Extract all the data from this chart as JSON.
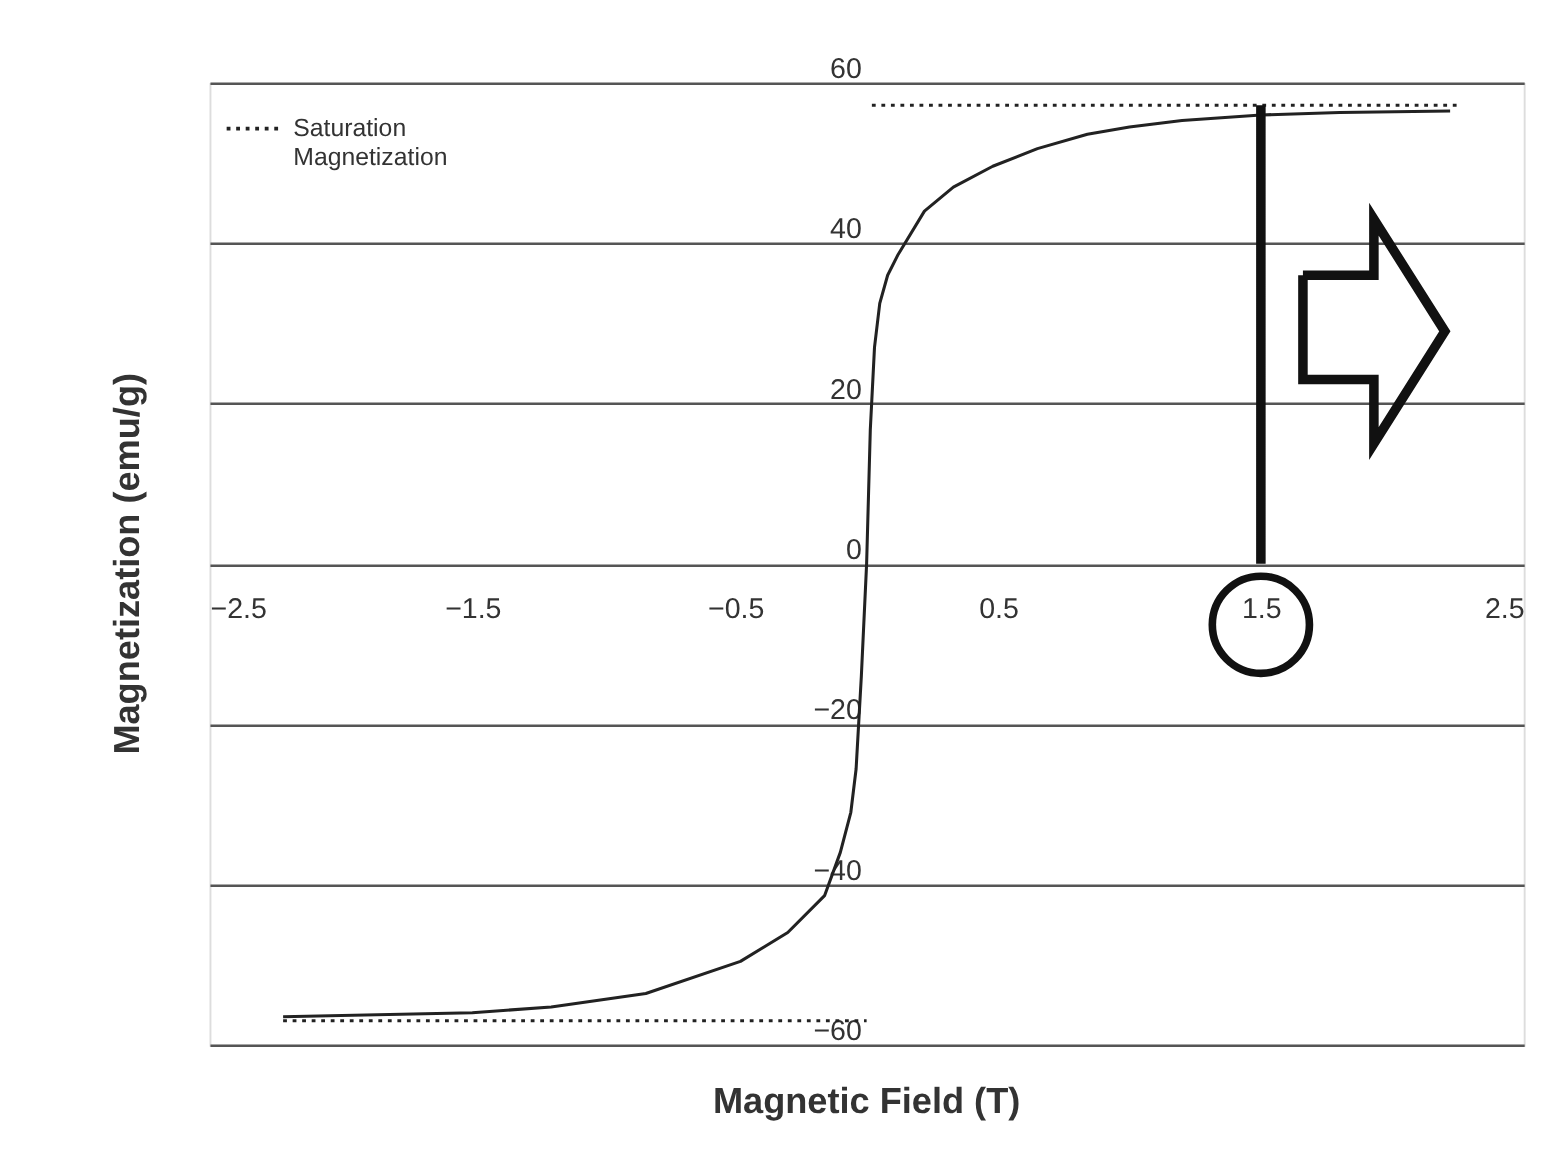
{
  "chart_data": {
    "type": "line",
    "xlabel": "Magnetic Field (T)",
    "ylabel": "Magnetization (emu/g)",
    "xlim": [
      -2.5,
      2.5
    ],
    "xticks": [
      -2.5,
      -1.5,
      -0.5,
      0.5,
      1.5,
      2.5
    ],
    "ylim": [
      -60,
      60
    ],
    "yticks": [
      -60,
      -40,
      -20,
      0,
      20,
      40,
      60
    ],
    "grid": "y",
    "legend": "top left",
    "marker": "none",
    "series": [
      {
        "color": "#222222",
        "line_style": "solid",
        "x": [
          -2.22,
          -1.5,
          -1.2,
          -0.84,
          -0.48,
          -0.3,
          -0.16,
          -0.1,
          -0.06,
          -0.04,
          -0.02,
          0,
          0.014,
          0.03,
          0.05,
          0.08,
          0.12,
          0.22,
          0.33,
          0.48,
          0.65,
          0.84,
          1.0,
          1.2,
          1.5,
          1.8,
          2.22
        ],
        "values": [
          -56.5,
          -56,
          -55.3,
          -53.6,
          -49.6,
          -46,
          -41.4,
          -36,
          -31,
          -25.6,
          -14,
          0,
          16.7,
          27,
          32.5,
          36,
          38.6,
          44,
          47,
          49.6,
          51.8,
          53.6,
          54.5,
          55.3,
          56,
          56.3,
          56.5
        ]
      },
      {
        "name": "Saturation Magnetization",
        "color": "#222222",
        "line_style": "dotted",
        "x": [
          -2.22,
          0,
          null,
          0.02,
          2.26
        ],
        "values": [
          -57,
          -57,
          null,
          57.2,
          57.2
        ]
      }
    ],
    "ref_lines": [
      {
        "axis": "x",
        "value": 1.5,
        "color": "#111111"
      }
    ]
  }
}
